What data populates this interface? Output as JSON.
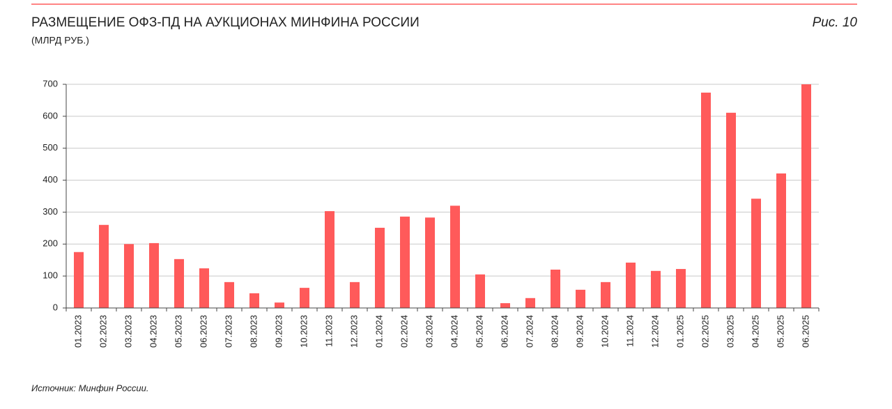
{
  "chart_data": {
    "type": "bar",
    "title": "РАЗМЕЩЕНИЕ ОФЗ-ПД НА АУКЦИОНАХ МИНФИНА РОССИИ",
    "subtitle": "(МЛРД РУБ.)",
    "figure_label": "Рис. 10",
    "source": "Источник: Минфин России.",
    "categories": [
      "01.2023",
      "02.2023",
      "03.2023",
      "04.2023",
      "05.2023",
      "06.2023",
      "07.2023",
      "08.2023",
      "09.2023",
      "10.2023",
      "11.2023",
      "12.2023",
      "01.2024",
      "02.2024",
      "03.2024",
      "04.2024",
      "05.2024",
      "06.2024",
      "07.2024",
      "08.2024",
      "09.2024",
      "10.2024",
      "11.2024",
      "12.2024",
      "01.2025",
      "02.2025",
      "03.2025",
      "04.2025",
      "05.2025",
      "06.2025"
    ],
    "values": [
      175,
      260,
      200,
      203,
      153,
      124,
      81,
      46,
      17,
      63,
      303,
      81,
      251,
      286,
      283,
      320,
      105,
      15,
      31,
      120,
      57,
      81,
      142,
      116,
      122,
      674,
      611,
      342,
      421,
      700
    ],
    "color": "#ff5a5a",
    "ylim": [
      0,
      700
    ],
    "yticks": [
      0,
      100,
      200,
      300,
      400,
      500,
      600,
      700
    ],
    "grid": true
  }
}
